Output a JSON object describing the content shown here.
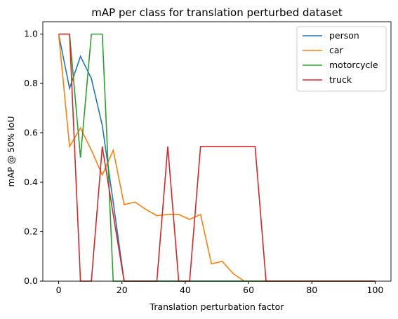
{
  "chart_data": {
    "type": "line",
    "title": "mAP per class for translation perturbed dataset",
    "x_label": "Translation perturbation factor",
    "y_label": "mAP @ 50% IoU",
    "x": [
      0,
      3.45,
      6.9,
      10.34,
      13.79,
      17.24,
      20.69,
      24.14,
      27.59,
      31.03,
      34.48,
      37.93,
      41.38,
      44.83,
      48.28,
      51.72,
      55.17,
      58.62,
      62.07,
      65.52,
      68.97,
      72.41,
      75.86,
      79.31,
      82.76,
      86.21,
      89.66,
      93.1,
      96.55,
      100
    ],
    "series": [
      {
        "name": "person",
        "color": "#1f77b4",
        "values": [
          1.0,
          0.78,
          0.91,
          0.82,
          0.63,
          0.32,
          0,
          0,
          0,
          0,
          0,
          0,
          0,
          0,
          0,
          0,
          0,
          0,
          0,
          0,
          0,
          0,
          0,
          0,
          0,
          0,
          0,
          0,
          0,
          0
        ]
      },
      {
        "name": "car",
        "color": "#ff7f0e",
        "values": [
          1.0,
          0.545,
          0.62,
          0.53,
          0.43,
          0.53,
          0.31,
          0.32,
          0.29,
          0.265,
          0.27,
          0.27,
          0.25,
          0.27,
          0.07,
          0.08,
          0.03,
          0,
          0,
          0,
          0,
          0,
          0,
          0,
          0,
          0,
          0,
          0,
          0,
          0
        ]
      },
      {
        "name": "motorcycle",
        "color": "#2ca02c",
        "values": [
          1.0,
          1.0,
          0.5,
          1.0,
          1.0,
          0,
          0,
          0,
          0,
          0,
          0,
          0,
          0,
          0,
          0,
          0,
          0,
          0,
          0,
          0,
          0,
          0,
          0,
          0,
          0,
          0,
          0,
          0,
          0,
          0
        ]
      },
      {
        "name": "truck",
        "color": "#d62728",
        "values": [
          1.0,
          1.0,
          0,
          0,
          0.545,
          0.27,
          0,
          0,
          0,
          0,
          0.545,
          0,
          0,
          0.545,
          0.545,
          0.545,
          0.545,
          0.545,
          0.545,
          0,
          0,
          0,
          0,
          0,
          0,
          0,
          0,
          0,
          0,
          0
        ]
      }
    ],
    "xlim": [
      -5,
      105
    ],
    "ylim": [
      0,
      1.05
    ],
    "xticks": [
      0,
      20,
      40,
      60,
      80,
      100
    ],
    "yticks": [
      {
        "value": 0,
        "label": "0.0"
      },
      {
        "value": 0.2,
        "label": "0.2"
      },
      {
        "value": 0.4,
        "label": "0.4"
      },
      {
        "value": 0.6,
        "label": "0.6"
      },
      {
        "value": 0.8,
        "label": "0.8"
      },
      {
        "value": 1.0,
        "label": "1.0"
      }
    ],
    "legend": "upper right",
    "grid": false
  }
}
